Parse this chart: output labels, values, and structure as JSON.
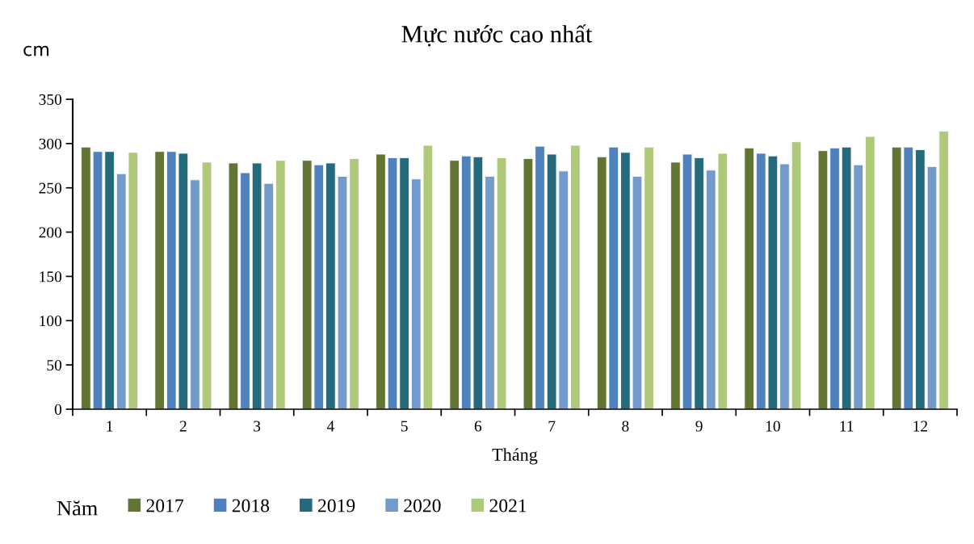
{
  "chart_data": {
    "type": "bar",
    "title": "Mực nước cao nhất",
    "ylabel": "cm",
    "xlabel": "Tháng",
    "legend_title": "Năm",
    "categories": [
      "1",
      "2",
      "3",
      "4",
      "5",
      "6",
      "7",
      "8",
      "9",
      "10",
      "11",
      "12"
    ],
    "series": [
      {
        "name": "2017",
        "color": "#637532",
        "values": [
          296,
          291,
          278,
          281,
          288,
          281,
          283,
          285,
          279,
          295,
          292,
          296
        ]
      },
      {
        "name": "2018",
        "color": "#4f81bd",
        "values": [
          291,
          291,
          267,
          276,
          284,
          286,
          297,
          296,
          288,
          289,
          295,
          296
        ]
      },
      {
        "name": "2019",
        "color": "#256a7a",
        "values": [
          291,
          289,
          278,
          278,
          284,
          285,
          288,
          290,
          284,
          286,
          296,
          293
        ]
      },
      {
        "name": "2020",
        "color": "#729aca",
        "values": [
          266,
          259,
          255,
          263,
          260,
          263,
          269,
          263,
          270,
          277,
          276,
          274
        ]
      },
      {
        "name": "2021",
        "color": "#afc97a",
        "values": [
          290,
          279,
          281,
          283,
          298,
          284,
          298,
          296,
          289,
          302,
          308,
          314
        ]
      }
    ],
    "ylim": [
      0,
      350
    ],
    "yticks": [
      0,
      50,
      100,
      150,
      200,
      250,
      300,
      350
    ],
    "grid": false,
    "legend": "bottom"
  }
}
